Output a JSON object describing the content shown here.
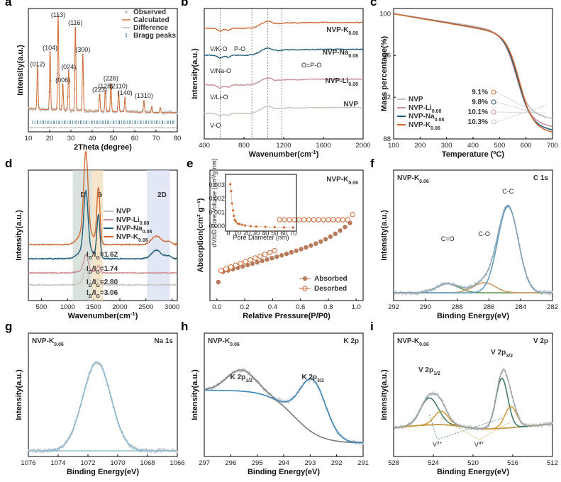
{
  "colors": {
    "nvp": "#c9c3b9",
    "li": "#c98f94",
    "na": "#1f5d79",
    "k": "#d06a34",
    "blue": "#5f8bb8",
    "tan": "#c99b63",
    "green": "#3e7a68",
    "gray": "#8a8a8a"
  },
  "panels": [
    {
      "id": "a",
      "label": "a",
      "xlabel": "2Theta (degree)",
      "ylabel": "Intensity(a.u.)",
      "xlim": [
        10,
        80
      ],
      "xticks": [
        "10",
        "20",
        "30",
        "40",
        "50",
        "60",
        "70",
        "80"
      ],
      "legend": [
        "Observed",
        "Calculated",
        "Difference",
        "Bragg peaks"
      ],
      "peak_labels": [
        {
          "t": "(012)",
          "x": 14.3
        },
        {
          "t": "(104)",
          "x": 20.2
        },
        {
          "t": "(113)",
          "x": 24.0
        },
        {
          "t": "(006)",
          "x": 26.2
        },
        {
          "t": "(024)",
          "x": 28.9
        },
        {
          "t": "(116)",
          "x": 32.1
        },
        {
          "t": "(300)",
          "x": 35.6
        },
        {
          "t": "(223)",
          "x": 43.5
        },
        {
          "t": "(128)",
          "x": 46.2
        },
        {
          "t": "(226)",
          "x": 48.8
        },
        {
          "t": "(2110)",
          "x": 52.4
        },
        {
          "t": "(140)",
          "x": 55.4
        },
        {
          "t": "(1310)",
          "x": 64.3
        }
      ]
    },
    {
      "id": "b",
      "label": "b",
      "xlabel": "Wavenumber(cm⁻¹)",
      "ylabel": "Intensity(a.u.)",
      "xlim": [
        400,
        2000
      ],
      "xticks": [
        "400",
        "800",
        "1200",
        "1600",
        "2000"
      ],
      "series": [
        "NVP-K0.06",
        "NVP-Na0.08",
        "NVP-Li0.08",
        "NVP"
      ],
      "annotations": [
        "V/K-O",
        "P-O",
        "V/Na-O",
        "O=P-O",
        "V/Li-O",
        "V-O"
      ]
    },
    {
      "id": "c",
      "label": "c",
      "xlabel": "Temperature (ºC)",
      "ylabel": "Mass percentage(%)",
      "xlim": [
        100,
        700
      ],
      "ylim": [
        88,
        100.5
      ],
      "xticks": [
        "100",
        "200",
        "300",
        "400",
        "500",
        "600",
        "700"
      ],
      "yticks": [
        "88",
        "92",
        "96",
        "100"
      ],
      "legend": [
        "NVP",
        "NVP-Li0.08",
        "NVP-Na0.08",
        "NVP-K0.06"
      ],
      "losses": [
        "9.1%",
        "9.8%",
        "10.1%",
        "10.3%"
      ]
    },
    {
      "id": "d",
      "label": "d",
      "xlabel": "Wavenumber(cm⁻¹)",
      "ylabel": "Intensity(a.u.)",
      "xlim": [
        250,
        3100
      ],
      "xticks": [
        "500",
        "1000",
        "1500",
        "2000",
        "2500",
        "3000"
      ],
      "band_labels": [
        "D",
        "G",
        "2D"
      ],
      "legend": [
        "NVP",
        "NVP-Li0.08",
        "NVP-Na0.08",
        "NVP-K0.06"
      ],
      "ratios": [
        "ID/IG=1.62",
        "ID/IG=1.74",
        "ID/IG=2.80",
        "ID/IG=3.06"
      ]
    },
    {
      "id": "e",
      "label": "e",
      "sample": "NVP-K0.06",
      "xlabel": "Relative Pressure(P/P0)",
      "ylabel": "Absorption(cm³ g⁻¹)",
      "xlim": [
        -0.05,
        1.05
      ],
      "xticks": [
        "0.0",
        "0.2",
        "0.4",
        "0.6",
        "0.8",
        "1.0"
      ],
      "legend": [
        "Absorbed",
        "Desorbed"
      ],
      "inset": {
        "xlabel": "Pore Diameter (nm)",
        "ylabel": "dV/dD Pore Volume (cm³/g·nm)",
        "xticks": [
          "0",
          "10",
          "20",
          "30",
          "40",
          "50",
          "60",
          "70"
        ],
        "yticks": [
          "0.000",
          "0.001",
          "0.002",
          "0.003"
        ]
      }
    },
    {
      "id": "f",
      "label": "f",
      "sample": "NVP-K0.06",
      "core": "C 1s",
      "xlabel": "Binding Energy(eV)",
      "ylabel": "Intensity(a.u.)",
      "xlim": [
        292,
        282
      ],
      "xticks": [
        "292",
        "290",
        "288",
        "286",
        "284",
        "282"
      ],
      "peaks": [
        "C=O",
        "C-O",
        "C-C"
      ]
    },
    {
      "id": "g",
      "label": "g",
      "sample": "NVP-K0.06",
      "core": "Na 1s",
      "xlabel": "Binding Energy(eV)",
      "ylabel": "Intensity(a.u.)",
      "xlim": [
        1076,
        1066
      ],
      "xticks": [
        "1076",
        "1074",
        "1072",
        "1070",
        "1068",
        "1066"
      ]
    },
    {
      "id": "h",
      "label": "h",
      "sample": "NVP-K0.06",
      "core": "K 2p",
      "xlabel": "Binding Energy(eV)",
      "ylabel": "Intensity(a.u.)",
      "xlim": [
        297,
        291
      ],
      "xticks": [
        "297",
        "296",
        "295",
        "294",
        "293",
        "292",
        "291"
      ],
      "peaks": [
        "K 2p1/2",
        "K 2p3/2"
      ]
    },
    {
      "id": "i",
      "label": "i",
      "sample": "NVP-K0.06",
      "core": "V 2p",
      "xlabel": "Binding Energy(eV)",
      "ylabel": "Intensity(a.u.)",
      "xlim": [
        528,
        512
      ],
      "xticks": [
        "528",
        "524",
        "520",
        "516",
        "512"
      ],
      "peaks": [
        "V 2p1/2",
        "V 2p3/2"
      ],
      "states": [
        "V3+",
        "V4+"
      ]
    }
  ]
}
